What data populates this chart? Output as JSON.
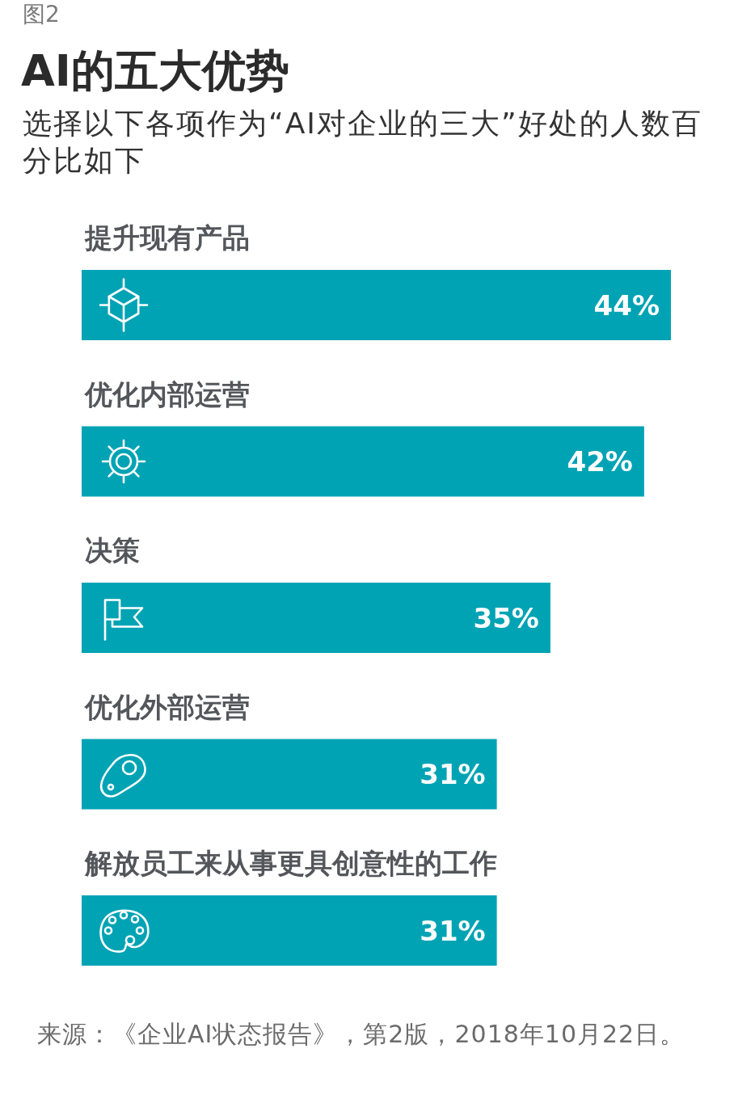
{
  "chart_data": {
    "type": "bar",
    "orientation": "horizontal",
    "title": "AI的五大优势",
    "subtitle": "选择以下各项作为“AI对企业的三大”好处的人数百分比如下",
    "categories": [
      "提升现有产品",
      "优化内部运营",
      "决策",
      "优化外部运营",
      "解放员工来从事更具创意性的工作"
    ],
    "values": [
      44,
      42,
      35,
      31,
      31
    ],
    "value_labels": [
      "44%",
      "42%",
      "35%",
      "31%",
      "31%"
    ],
    "color": "#00a3b4",
    "annotations": [
      "图2",
      "来源：《企业AI状态报告》，第2版，2018年10月22日。"
    ]
  }
}
